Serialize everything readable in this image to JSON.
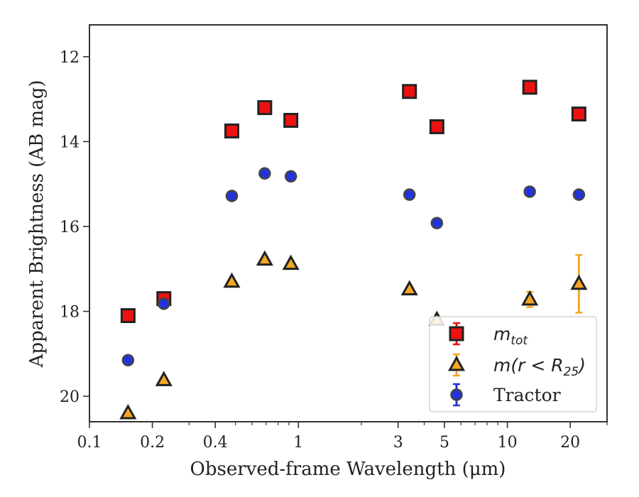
{
  "chart_data": {
    "type": "scatter",
    "xlabel": "Observed-frame Wavelength (μm)",
    "ylabel": "Apparent Brightness (AB mag)",
    "x_scale": "log",
    "y_inverted": true,
    "xlim": [
      0.1,
      30
    ],
    "ylim": [
      20.6,
      11.25
    ],
    "x_ticks": [
      0.1,
      0.2,
      0.4,
      1,
      3,
      5,
      10,
      20
    ],
    "x_tick_labels": [
      "0.1",
      "0.2",
      "0.4",
      "1",
      "3",
      "5",
      "10",
      "20"
    ],
    "y_ticks": [
      12,
      14,
      16,
      18,
      20
    ],
    "y_tick_labels": [
      "12",
      "14",
      "16",
      "18",
      "20"
    ],
    "legend_position": "lower-right",
    "series": [
      {
        "name": "m_tot",
        "label_main": "m",
        "label_sub": "tot",
        "marker": "square",
        "color": "#ee1111",
        "edge_color": "#222222",
        "x": [
          0.153,
          0.227,
          0.48,
          0.69,
          0.92,
          3.4,
          4.6,
          12.8,
          22.0
        ],
        "y": [
          18.1,
          17.7,
          13.75,
          13.2,
          13.5,
          12.82,
          13.65,
          12.72,
          13.35
        ],
        "yerr": [
          0.05,
          0.05,
          0.03,
          0.03,
          0.03,
          0.03,
          0.03,
          0.05,
          0.08
        ]
      },
      {
        "name": "m(r < R25)",
        "label_main": "m(r < R",
        "label_sub": "25",
        "label_end": ")",
        "marker": "triangle",
        "color": "#f5a623",
        "edge_color": "#222222",
        "x": [
          0.153,
          0.227,
          0.48,
          0.69,
          0.92,
          3.4,
          4.6,
          12.8,
          22.0
        ],
        "y": [
          20.4,
          19.62,
          17.3,
          16.78,
          16.88,
          17.48,
          18.2,
          17.72,
          17.35
        ],
        "yerr": [
          0.05,
          0.05,
          0.05,
          0.05,
          0.05,
          0.05,
          0.05,
          0.18,
          0.68
        ]
      },
      {
        "name": "Tractor",
        "label_main": "Tractor",
        "marker": "circle",
        "color": "#2233dd",
        "edge_color": "#444444",
        "x": [
          0.153,
          0.227,
          0.48,
          0.69,
          0.92,
          3.4,
          4.6,
          12.8,
          22.0
        ],
        "y": [
          19.15,
          17.82,
          15.28,
          14.75,
          14.82,
          15.25,
          15.92,
          15.18,
          15.25
        ],
        "yerr": [
          0.05,
          0.05,
          0.03,
          0.03,
          0.03,
          0.03,
          0.03,
          0.05,
          0.05
        ]
      }
    ]
  }
}
